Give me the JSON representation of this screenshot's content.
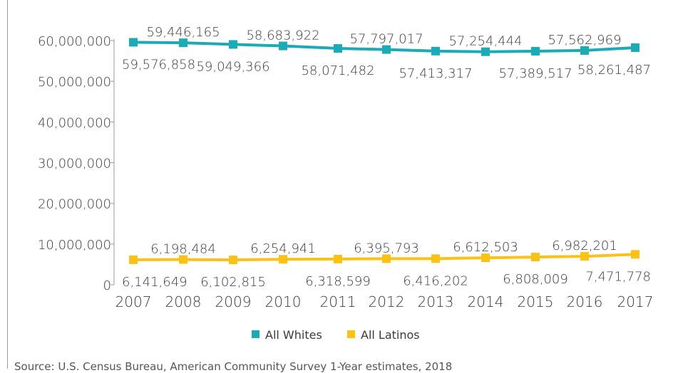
{
  "chart_data": {
    "type": "line",
    "title": "",
    "xlabel": "",
    "ylabel": "",
    "categories": [
      "2007",
      "2008",
      "2009",
      "2010",
      "2011",
      "2012",
      "2013",
      "2014",
      "2015",
      "2016",
      "2017"
    ],
    "ylim": [
      0,
      60000000
    ],
    "yticks": [
      0,
      10000000,
      20000000,
      30000000,
      40000000,
      50000000,
      60000000
    ],
    "ytick_labels": [
      "0",
      "10,000,000",
      "20,000,000",
      "30,000,000",
      "40,000,000",
      "50,000,000",
      "60,000,000"
    ],
    "grid": false,
    "legend_position": "bottom",
    "series": [
      {
        "name": "All Whites",
        "color": "#1aabb6",
        "values": [
          59576858,
          59446165,
          59049366,
          58683922,
          58071482,
          57797017,
          57413317,
          57254444,
          57389517,
          57562969,
          58261487
        ],
        "labels": [
          "59,576,858",
          "59,446,165",
          "59,049,366",
          "58,683,922",
          "58,071,482",
          "57,797,017",
          "57,413,317",
          "57,254,444",
          "57,389,517",
          "57,562,969",
          "58,261,487"
        ]
      },
      {
        "name": "All Latinos",
        "color": "#fbc115",
        "values": [
          6141649,
          6198484,
          6102815,
          6254941,
          6318599,
          6395793,
          6416202,
          6612503,
          6808009,
          6982201,
          7471778
        ],
        "labels": [
          "6,141,649",
          "6,198,484",
          "6,102,815",
          "6,254,941",
          "6,318,599",
          "6,395,793",
          "6,416,202",
          "6,612,503",
          "6,808,009",
          "6,982,201",
          "7,471,778"
        ]
      }
    ]
  },
  "source_note": "Source: U.S. Census Bureau, American Community Survey 1-Year estimates, 2018"
}
